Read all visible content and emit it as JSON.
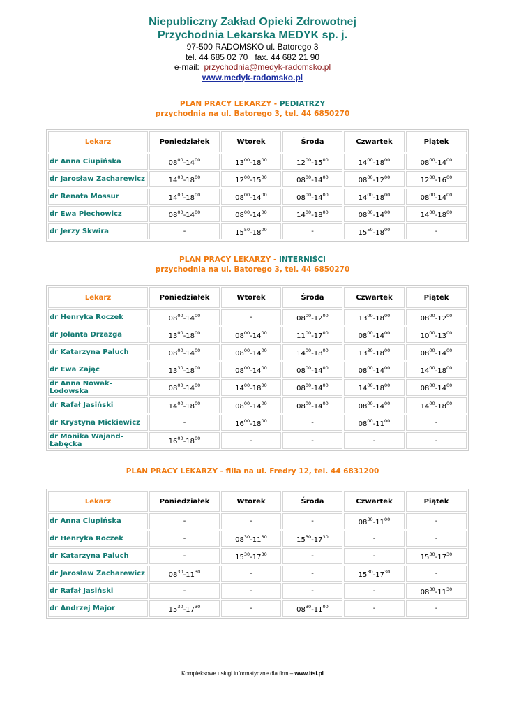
{
  "header": {
    "title1": "Niepubliczny Zakład Opieki Zdrowotnej",
    "title2": "Przychodnia Lekarska MEDYK sp. j.",
    "address": "97-500 RADOMSKO ul. Batorego 3",
    "tel": "tel. 44 685 02 70",
    "fax": "fax. 44 682 21 90",
    "email_label": "e-mail:",
    "email": "przychodnia@medyk-radomsko.pl",
    "www": "www.medyk-radomsko.pl"
  },
  "sections": [
    {
      "prefix": "PLAN PRACY LEKARZY - ",
      "name": "PEDIATRZY",
      "subtitle": "przychodnia na ul. Batorego 3, tel. 44 6850270",
      "columns": [
        "Lekarz",
        "Poniedziałek",
        "Wtorek",
        "Środa",
        "Czwartek",
        "Piątek"
      ],
      "rows": [
        [
          "dr Anna Ciupińska",
          [
            "08",
            "00",
            "-14",
            "00"
          ],
          [
            "13",
            "00",
            "-18",
            "00"
          ],
          [
            "12",
            "00",
            "-15",
            "00"
          ],
          [
            "14",
            "00",
            "-18",
            "00"
          ],
          [
            "08",
            "00",
            "-14",
            "00"
          ]
        ],
        [
          "dr Jarosław Zacharewicz",
          [
            "14",
            "00",
            "-18",
            "00"
          ],
          [
            "12",
            "00",
            "-15",
            "00"
          ],
          [
            "08",
            "00",
            "-14",
            "00"
          ],
          [
            "08",
            "00",
            "-12",
            "00"
          ],
          [
            "12",
            "00",
            "-16",
            "00"
          ]
        ],
        [
          "dr Renata Mossur",
          [
            "14",
            "00",
            "-18",
            "00"
          ],
          [
            "08",
            "00",
            "-14",
            "00"
          ],
          [
            "08",
            "00",
            "-14",
            "00"
          ],
          [
            "14",
            "00",
            "-18",
            "00"
          ],
          [
            "08",
            "00",
            "-14",
            "00"
          ]
        ],
        [
          "dr Ewa Piechowicz",
          [
            "08",
            "00",
            "-14",
            "00"
          ],
          [
            "08",
            "00",
            "-14",
            "00"
          ],
          [
            "14",
            "00",
            "-18",
            "00"
          ],
          [
            "08",
            "00",
            "-14",
            "00"
          ],
          [
            "14",
            "00",
            "-18",
            "00"
          ]
        ],
        [
          "dr Jerzy Skwira",
          [
            "-"
          ],
          [
            "15",
            "50",
            "-18",
            "00"
          ],
          [
            "-"
          ],
          [
            "15",
            "50",
            "-18",
            "00"
          ],
          [
            "-"
          ]
        ]
      ]
    },
    {
      "prefix": "PLAN PRACY LEKARZY - ",
      "name": "INTERNIŚCI",
      "subtitle": "przychodnia na ul. Batorego 3, tel. 44 6850270",
      "columns": [
        "Lekarz",
        "Poniedziałek",
        "Wtorek",
        "Środa",
        "Czwartek",
        "Piątek"
      ],
      "rows": [
        [
          "dr Henryka Roczek",
          [
            "08",
            "00",
            "-14",
            "00"
          ],
          [
            "-"
          ],
          [
            "08",
            "00",
            "-12",
            "00"
          ],
          [
            "13",
            "00",
            "-18",
            "00"
          ],
          [
            "08",
            "00",
            "-12",
            "00"
          ]
        ],
        [
          "dr Jolanta Drzazga",
          [
            "13",
            "00",
            "-18",
            "00"
          ],
          [
            "08",
            "00",
            "-14",
            "00"
          ],
          [
            "11",
            "00",
            "-17",
            "00"
          ],
          [
            "08",
            "00",
            "-14",
            "00"
          ],
          [
            "10",
            "00",
            "-13",
            "00"
          ]
        ],
        [
          "dr Katarzyna Paluch",
          [
            "08",
            "00",
            "-14",
            "00"
          ],
          [
            "08",
            "00",
            "-14",
            "00"
          ],
          [
            "14",
            "00",
            "-18",
            "00"
          ],
          [
            "13",
            "30",
            "-18",
            "00"
          ],
          [
            "08",
            "00",
            "-14",
            "00"
          ]
        ],
        [
          "dr Ewa Zając",
          [
            "13",
            "30",
            "-18",
            "00"
          ],
          [
            "08",
            "00",
            "-14",
            "00"
          ],
          [
            "08",
            "00",
            "-14",
            "00"
          ],
          [
            "08",
            "00",
            "-14",
            "00"
          ],
          [
            "14",
            "00",
            "-18",
            "00"
          ]
        ],
        [
          "dr Anna Nowak-Lodowska",
          [
            "08",
            "00",
            "-14",
            "00"
          ],
          [
            "14",
            "00",
            "-18",
            "00"
          ],
          [
            "08",
            "00",
            "-14",
            "00"
          ],
          [
            "14",
            "00",
            "-18",
            "00"
          ],
          [
            "08",
            "00",
            "-14",
            "00"
          ]
        ],
        [
          "dr Rafał Jasiński",
          [
            "14",
            "00",
            "-18",
            "00"
          ],
          [
            "08",
            "00",
            "-14",
            "00"
          ],
          [
            "08",
            "00",
            "-14",
            "00"
          ],
          [
            "08",
            "00",
            "-14",
            "00"
          ],
          [
            "14",
            "00",
            "-18",
            "00"
          ]
        ],
        [
          "dr Krystyna Mickiewicz",
          [
            "-"
          ],
          [
            "16",
            "00",
            "-18",
            "00"
          ],
          [
            "-"
          ],
          [
            "08",
            "00",
            "-11",
            "00"
          ],
          [
            "-"
          ]
        ],
        [
          "dr Monika Wajand-Łabęcka",
          [
            "16",
            "00",
            "-18",
            "00"
          ],
          [
            "-"
          ],
          [
            "-"
          ],
          [
            "-"
          ],
          [
            "-"
          ]
        ]
      ]
    },
    {
      "prefix": "PLAN PRACY LEKARZY - filia na ul. Fredry 12, tel. 44 6831200",
      "columns": [
        "Lekarz",
        "Poniedziałek",
        "Wtorek",
        "Środa",
        "Czwartek",
        "Piątek"
      ],
      "rows": [
        [
          "dr Anna Ciupińska",
          [
            "-"
          ],
          [
            "-"
          ],
          [
            "-"
          ],
          [
            "08",
            "30",
            "-11",
            "00"
          ],
          [
            "-"
          ]
        ],
        [
          "dr Henryka Roczek",
          [
            "-"
          ],
          [
            "08",
            "30",
            "-11",
            "30"
          ],
          [
            "15",
            "30",
            "-17",
            "30"
          ],
          [
            "-"
          ],
          [
            "-"
          ]
        ],
        [
          "dr Katarzyna Paluch",
          [
            "-"
          ],
          [
            "15",
            "30",
            "-17",
            "30"
          ],
          [
            "-"
          ],
          [
            "-"
          ],
          [
            "15",
            "30",
            "-17",
            "30"
          ]
        ],
        [
          "dr Jarosław Zacharewicz",
          [
            "08",
            "30",
            "-11",
            "30"
          ],
          [
            "-"
          ],
          [
            "-"
          ],
          [
            "15",
            "30",
            "-17",
            "30"
          ],
          [
            "-"
          ]
        ],
        [
          "dr Rafał Jasiński",
          [
            "-"
          ],
          [
            "-"
          ],
          [
            "-"
          ],
          [
            "-"
          ],
          [
            "08",
            "30",
            "-11",
            "30"
          ]
        ],
        [
          "dr Andrzej Major",
          [
            "15",
            "30",
            "-17",
            "30"
          ],
          [
            "-"
          ],
          [
            "08",
            "30",
            "-11",
            "00"
          ],
          [
            "-"
          ],
          [
            "-"
          ]
        ]
      ]
    }
  ],
  "footer": {
    "text": "Kompleksowe usługi informatyczne dla firm – ",
    "link": "www.itsi.pl"
  }
}
